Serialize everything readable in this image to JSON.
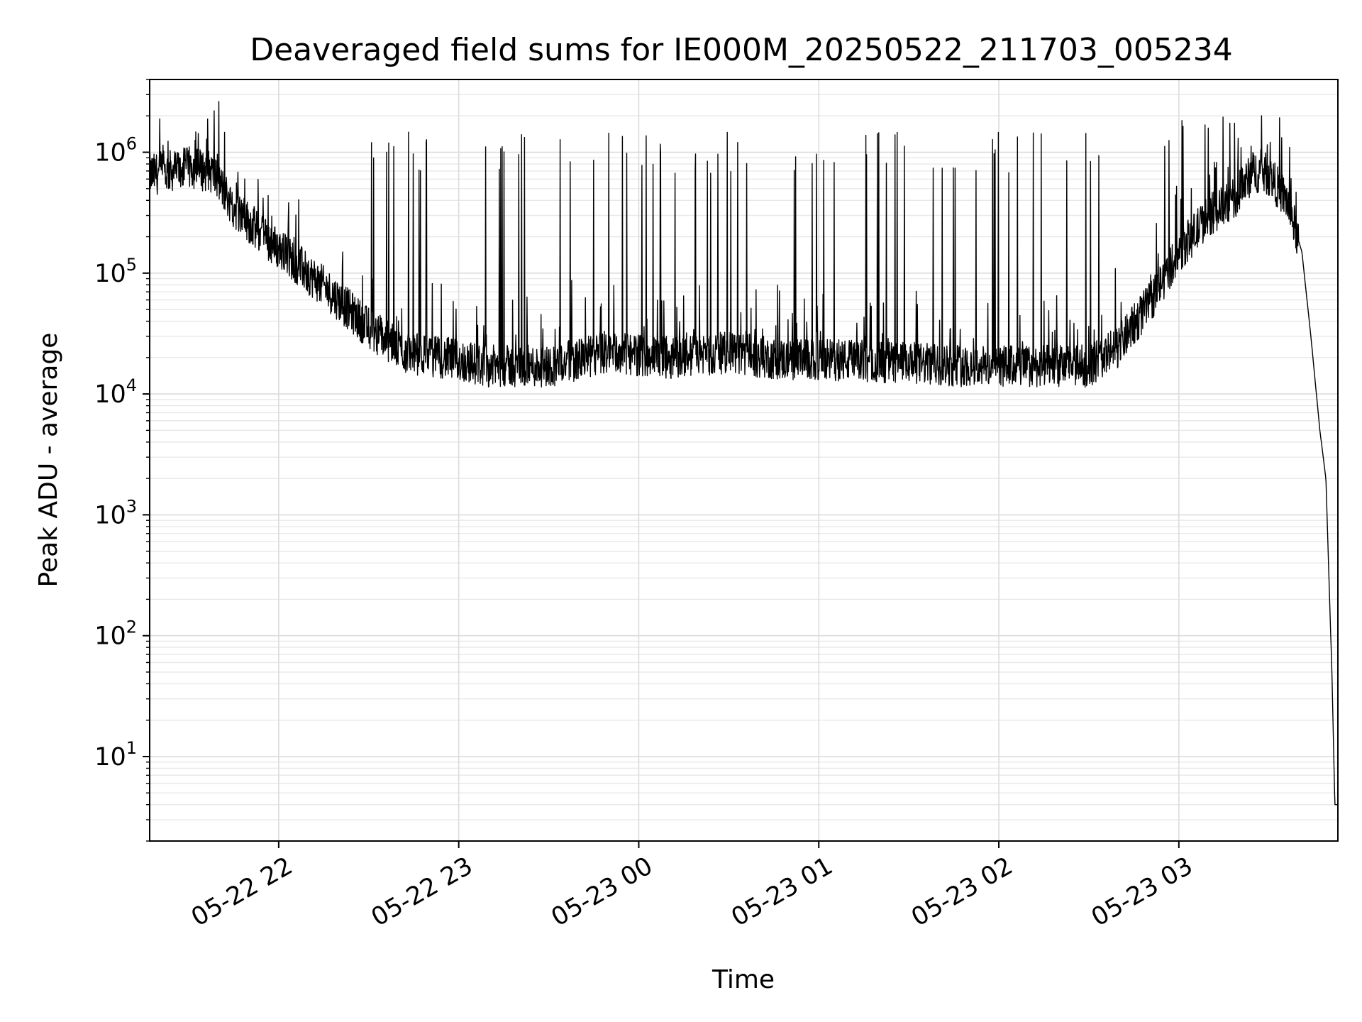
{
  "chart_data": {
    "type": "line",
    "title": "Deaveraged field sums for IE000M_20250522_211703_005234",
    "xlabel": "Time",
    "ylabel": "Peak ADU - average",
    "yscale": "log",
    "ylim": [
      2,
      4000000
    ],
    "xlim": [
      "2025-05-22 21:17",
      "2025-05-23 03:53"
    ],
    "grid": true,
    "x_tick_labels": [
      "05-22 22",
      "05-22 23",
      "05-23 00",
      "05-23 01",
      "05-23 02",
      "05-23 03"
    ],
    "y_tick_labels": [
      {
        "base": "10",
        "exp": "1"
      },
      {
        "base": "10",
        "exp": "2"
      },
      {
        "base": "10",
        "exp": "3"
      },
      {
        "base": "10",
        "exp": "4"
      },
      {
        "base": "10",
        "exp": "5"
      },
      {
        "base": "10",
        "exp": "6"
      }
    ],
    "line_color": "#000000",
    "series": [
      {
        "name": "",
        "baseline_points": [
          [
            "2025-05-22 21:17",
            650000
          ],
          [
            "2025-05-22 21:24",
            700000
          ],
          [
            "2025-05-22 21:31",
            750000
          ],
          [
            "2025-05-22 21:38",
            680000
          ],
          [
            "2025-05-22 21:45",
            350000
          ],
          [
            "2025-05-22 21:55",
            200000
          ],
          [
            "2025-05-22 22:06",
            120000
          ],
          [
            "2025-05-22 22:17",
            70000
          ],
          [
            "2025-05-22 22:30",
            35000
          ],
          [
            "2025-05-22 22:42",
            22000
          ],
          [
            "2025-05-22 22:55",
            20000
          ],
          [
            "2025-05-22 23:10",
            17000
          ],
          [
            "2025-05-22 23:30",
            17000
          ],
          [
            "2025-05-22 23:50",
            22000
          ],
          [
            "2025-05-23 00:10",
            20000
          ],
          [
            "2025-05-23 00:30",
            22000
          ],
          [
            "2025-05-23 00:50",
            19000
          ],
          [
            "2025-05-23 01:10",
            19000
          ],
          [
            "2025-05-23 01:30",
            18000
          ],
          [
            "2025-05-23 01:50",
            17000
          ],
          [
            "2025-05-23 02:10",
            17000
          ],
          [
            "2025-05-23 02:30",
            17000
          ],
          [
            "2025-05-23 02:40",
            25000
          ],
          [
            "2025-05-23 02:50",
            55000
          ],
          [
            "2025-05-23 03:00",
            150000
          ],
          [
            "2025-05-23 03:10",
            300000
          ],
          [
            "2025-05-23 03:18",
            400000
          ],
          [
            "2025-05-23 03:25",
            700000
          ],
          [
            "2025-05-23 03:30",
            650000
          ],
          [
            "2025-05-23 03:36",
            400000
          ],
          [
            "2025-05-23 03:41",
            150000
          ],
          [
            "2025-05-23 03:44",
            30000
          ],
          [
            "2025-05-23 03:47",
            5000
          ],
          [
            "2025-05-23 03:49",
            2000
          ],
          [
            "2025-05-23 03:51",
            50
          ],
          [
            "2025-05-23 03:52",
            4
          ],
          [
            "2025-05-23 03:53",
            4
          ]
        ],
        "spike_ranges": [
          [
            "2025-05-22 22:30",
            "2025-05-23 00:40",
            1000000
          ],
          [
            "2025-05-23 00:50",
            "2025-05-23 02:40",
            1000000
          ],
          [
            "2025-05-23 02:55",
            "2025-05-23 03:20",
            1500000
          ]
        ]
      }
    ]
  }
}
